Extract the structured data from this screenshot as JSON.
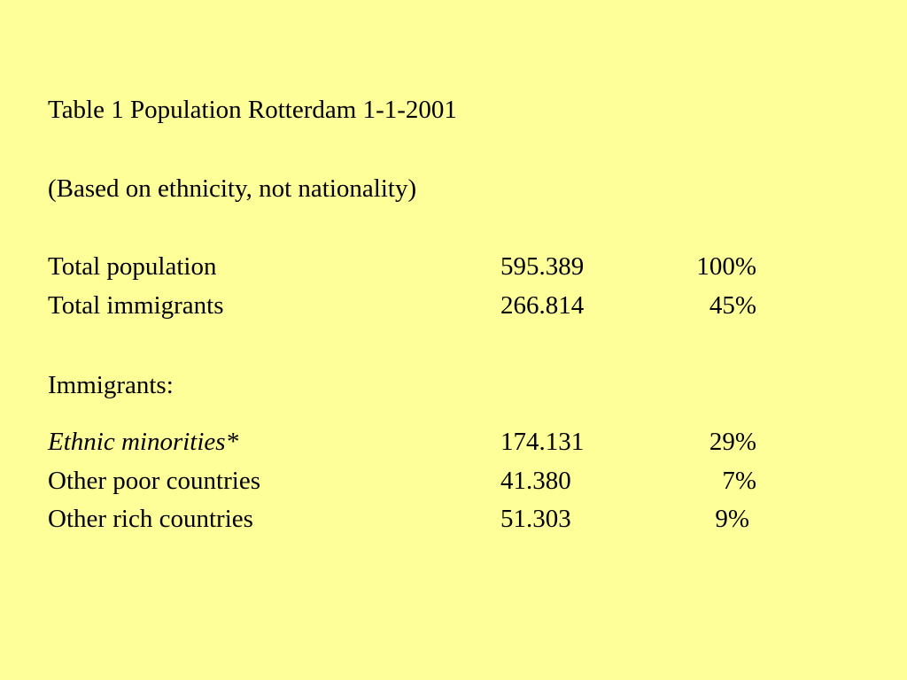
{
  "title": "Table 1 Population Rotterdam 1-1-2001",
  "subtitle": "(Based on ethnicity, not nationality)",
  "totals": [
    {
      "label": "Total population",
      "count": "595.389",
      "percent": "100%"
    },
    {
      "label": "Total immigrants",
      "count": "266.814",
      "percent": "45%"
    }
  ],
  "immigrants_heading": "Immigrants:",
  "immigrant_groups": [
    {
      "label": "Ethnic minorities*",
      "count": "174.131",
      "percent": "29%"
    },
    {
      "label": "Other poor countries",
      "count": "41.380",
      "percent": "7%"
    },
    {
      "label": "Other rich countries",
      "count": "51.303",
      "percent": "9%"
    }
  ],
  "colors": {
    "background": "#ffff99",
    "text": "#000000"
  }
}
